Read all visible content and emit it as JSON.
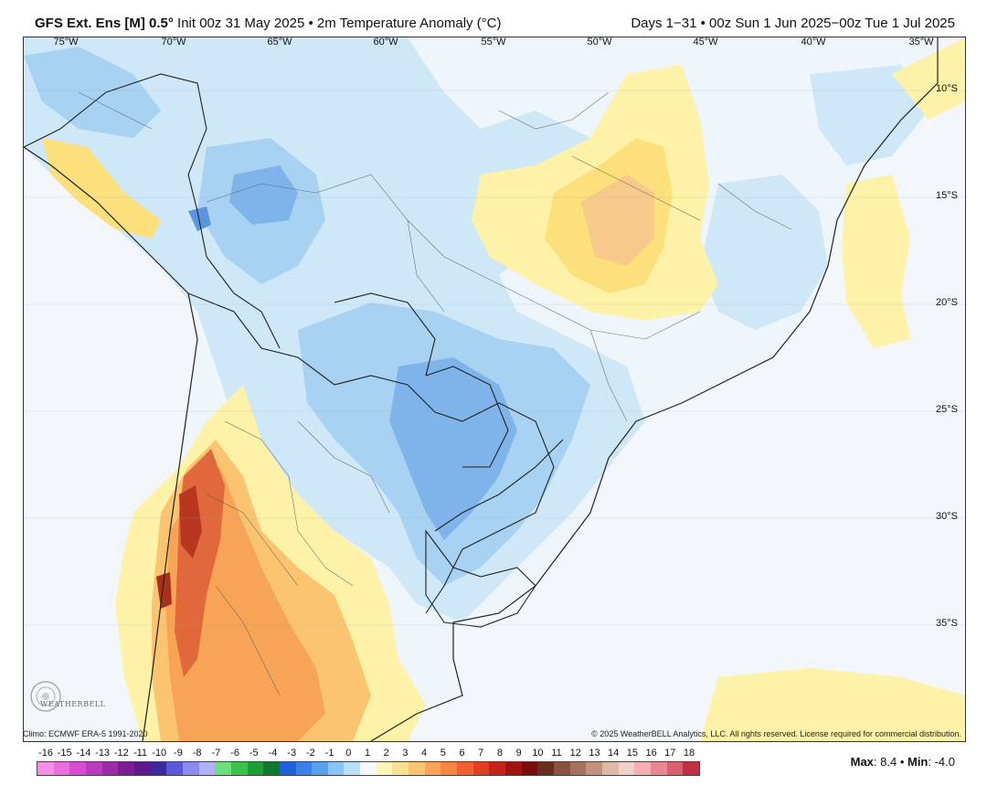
{
  "header": {
    "model": "GFS Ext. Ens [M] 0.5°",
    "init": " Init 00z 31 May 2025 • 2m Temperature Anomaly (°C)",
    "period": "Days 1−31 • 00z Sun 1 Jun 2025−00z Tue 1 Jul 2025"
  },
  "axes": {
    "longitudes": [
      "75°W",
      "70°W",
      "65°W",
      "60°W",
      "55°W",
      "50°W",
      "45°W",
      "40°W",
      "35°W"
    ],
    "latitudes": [
      "10°S",
      "15°S",
      "20°S",
      "25°S",
      "30°S",
      "35°S"
    ]
  },
  "footer": {
    "climo": "Climo: ECMWF ERA-5 1991-2020",
    "copyright": "© 2025 WeatherBELL Analytics, LLC. All rights reserved. License required for commercial distribution.",
    "logo_text": "WEATHERBELL"
  },
  "colorbar": {
    "labels": [
      "-16",
      "-15",
      "-14",
      "-13",
      "-12",
      "-11",
      "-10",
      "-9",
      "-8",
      "-7",
      "-6",
      "-5",
      "-4",
      "-3",
      "-2",
      "-1",
      "0",
      "1",
      "2",
      "3",
      "4",
      "5",
      "6",
      "7",
      "8",
      "9",
      "10",
      "11",
      "12",
      "13",
      "14",
      "15",
      "16",
      "17",
      "18"
    ],
    "colors": [
      "#f58ee8",
      "#e86ede",
      "#d54ed2",
      "#b93bbe",
      "#9b2ba8",
      "#7c1e93",
      "#5c1a8c",
      "#3c2a9c",
      "#5a5ad8",
      "#8a8af0",
      "#b0b0ff",
      "#6be07a",
      "#3cc24c",
      "#1e9e34",
      "#0e7a2a",
      "#2060d8",
      "#3a80e8",
      "#5aa0f0",
      "#88c4f8",
      "#b8e0fc",
      "#f4f9fd",
      "#fdf4b8",
      "#fce090",
      "#fbc470",
      "#f9a456",
      "#f68442",
      "#f06030",
      "#e23e22",
      "#c42418",
      "#a01410",
      "#7a0c0a",
      "#6a2e20",
      "#8a5040",
      "#a87060",
      "#c49080",
      "#e0b8a8",
      "#f0d0c8",
      "#f4b0b0",
      "#e88890",
      "#d86070",
      "#c03040"
    ]
  },
  "stats": {
    "max_label": "Max",
    "max_value": ": 8.4 • ",
    "min_label": "Min",
    "min_value": ": -4.0"
  },
  "map_colors": {
    "background": "#f3f7fb",
    "light_blue": "#cfe8f7",
    "mid_blue": "#a8d2f2",
    "blue": "#7fb4ea",
    "deep_blue": "#5d94e0",
    "light_yellow": "#fdf2a8",
    "yellow": "#fbe07c",
    "orange": "#f7b266",
    "dark_orange": "#ee8a48",
    "red": "#d65a2e",
    "dark_red": "#a8301c"
  }
}
